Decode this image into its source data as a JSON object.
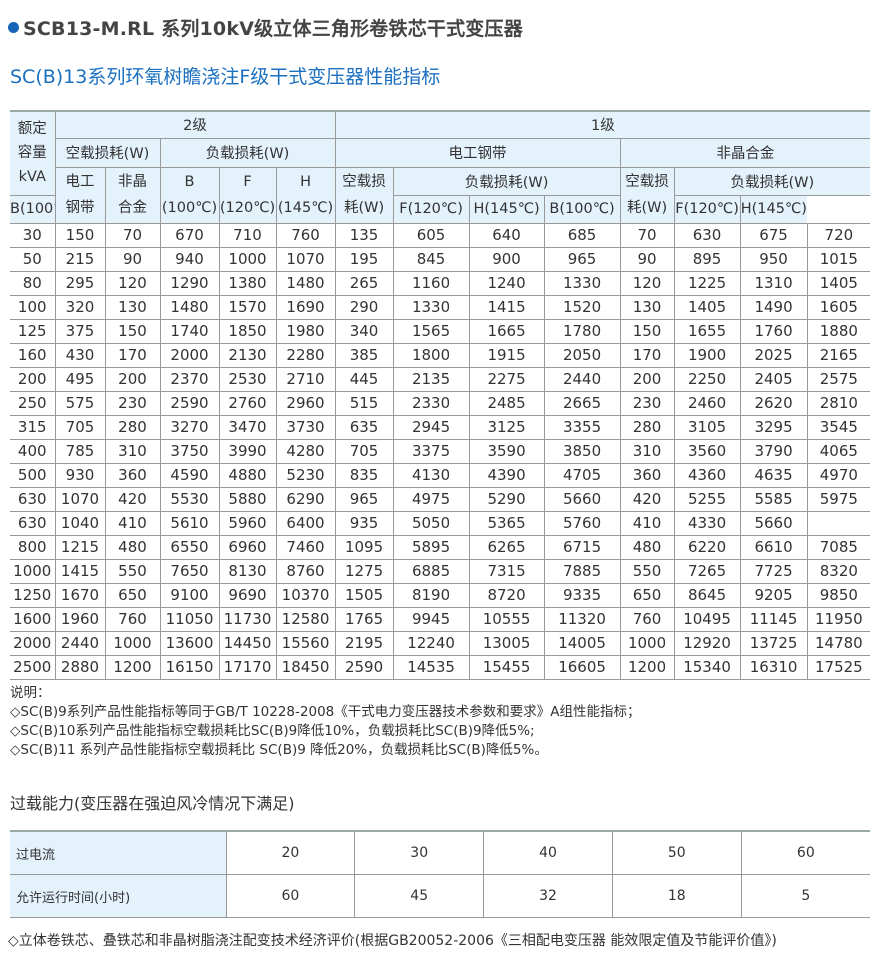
{
  "title": "SCB13-M.RL 系列10kV级立体三角形卷铁芯干式变压器",
  "subtitle": "SC(B)13系列环氧树瞻浇注F级干式变压器性能指标",
  "accent_color": "#1565b8",
  "main_table": {
    "header": {
      "rated_capacity": [
        "额定",
        "容量",
        "kVA"
      ],
      "grade2": "2级",
      "grade1": "1级",
      "no_load_loss": "空载损耗(W)",
      "load_loss": "负载损耗(W)",
      "silicon_steel": "电工钢带",
      "amorphous": "非晶合金",
      "steel_2lines": [
        "电工",
        "钢带"
      ],
      "amorphous_2lines": [
        "非晶",
        "合金"
      ],
      "b_2lines": [
        "B",
        "(100℃)"
      ],
      "f_2lines": [
        "F",
        "(120℃)"
      ],
      "h_2lines": [
        "H",
        "(145℃)"
      ],
      "no_load_2lines": [
        "空载损",
        "耗(W)"
      ],
      "b": "B(100℃)",
      "f": "F(120℃)",
      "h": "H(145℃)"
    },
    "rows": [
      [
        "30",
        "150",
        "70",
        "670",
        "710",
        "760",
        "135",
        "605",
        "640",
        "685",
        "70",
        "630",
        "675",
        "720"
      ],
      [
        "50",
        "215",
        "90",
        "940",
        "1000",
        "1070",
        "195",
        "845",
        "900",
        "965",
        "90",
        "895",
        "950",
        "1015"
      ],
      [
        "80",
        "295",
        "120",
        "1290",
        "1380",
        "1480",
        "265",
        "1160",
        "1240",
        "1330",
        "120",
        "1225",
        "1310",
        "1405"
      ],
      [
        "100",
        "320",
        "130",
        "1480",
        "1570",
        "1690",
        "290",
        "1330",
        "1415",
        "1520",
        "130",
        "1405",
        "1490",
        "1605"
      ],
      [
        "125",
        "375",
        "150",
        "1740",
        "1850",
        "1980",
        "340",
        "1565",
        "1665",
        "1780",
        "150",
        "1655",
        "1760",
        "1880"
      ],
      [
        "160",
        "430",
        "170",
        "2000",
        "2130",
        "2280",
        "385",
        "1800",
        "1915",
        "2050",
        "170",
        "1900",
        "2025",
        "2165"
      ],
      [
        "200",
        "495",
        "200",
        "2370",
        "2530",
        "2710",
        "445",
        "2135",
        "2275",
        "2440",
        "200",
        "2250",
        "2405",
        "2575"
      ],
      [
        "250",
        "575",
        "230",
        "2590",
        "2760",
        "2960",
        "515",
        "2330",
        "2485",
        "2665",
        "230",
        "2460",
        "2620",
        "2810"
      ],
      [
        "315",
        "705",
        "280",
        "3270",
        "3470",
        "3730",
        "635",
        "2945",
        "3125",
        "3355",
        "280",
        "3105",
        "3295",
        "3545"
      ],
      [
        "400",
        "785",
        "310",
        "3750",
        "3990",
        "4280",
        "705",
        "3375",
        "3590",
        "3850",
        "310",
        "3560",
        "3790",
        "4065"
      ],
      [
        "500",
        "930",
        "360",
        "4590",
        "4880",
        "5230",
        "835",
        "4130",
        "4390",
        "4705",
        "360",
        "4360",
        "4635",
        "4970"
      ],
      [
        "630",
        "1070",
        "420",
        "5530",
        "5880",
        "6290",
        "965",
        "4975",
        "5290",
        "5660",
        "420",
        "5255",
        "5585",
        "5975"
      ],
      [
        "630",
        "1040",
        "410",
        "5610",
        "5960",
        "6400",
        "935",
        "5050",
        "5365",
        "5760",
        "410",
        "4330",
        "5660",
        ""
      ],
      [
        "800",
        "1215",
        "480",
        "6550",
        "6960",
        "7460",
        "1095",
        "5895",
        "6265",
        "6715",
        "480",
        "6220",
        "6610",
        "7085"
      ],
      [
        "1000",
        "1415",
        "550",
        "7650",
        "8130",
        "8760",
        "1275",
        "6885",
        "7315",
        "7885",
        "550",
        "7265",
        "7725",
        "8320"
      ],
      [
        "1250",
        "1670",
        "650",
        "9100",
        "9690",
        "10370",
        "1505",
        "8190",
        "8720",
        "9335",
        "650",
        "8645",
        "9205",
        "9850"
      ],
      [
        "1600",
        "1960",
        "760",
        "11050",
        "11730",
        "12580",
        "1765",
        "9945",
        "10555",
        "11320",
        "760",
        "10495",
        "11145",
        "11950"
      ],
      [
        "2000",
        "2440",
        "1000",
        "13600",
        "14450",
        "15560",
        "2195",
        "12240",
        "13005",
        "14005",
        "1000",
        "12920",
        "13725",
        "14780"
      ],
      [
        "2500",
        "2880",
        "1200",
        "16150",
        "17170",
        "18450",
        "2590",
        "14535",
        "15455",
        "16605",
        "1200",
        "15340",
        "16310",
        "17525"
      ]
    ]
  },
  "notes": {
    "heading": "说明：",
    "items": [
      "◇SC(B)9系列产品性能指标等同于GB/T 10228-2008《干式电力变压器技术参数和要求》A组性能指标；",
      "◇SC(B)10系列产品性能指标空载损耗比SC(B)9降低10%，负载损耗比SC(B)9降低5%;",
      "◇SC(B)11 系列产品性能指标空载损耗比 SC(B)9 降低20%，负载损耗比SC(B)降低5%。"
    ]
  },
  "overload": {
    "title": "过载能力(变压器在强迫风冷情况下满足)",
    "rows": [
      {
        "label": "过电流",
        "values": [
          "20",
          "30",
          "40",
          "50",
          "60"
        ]
      },
      {
        "label": "允许运行时间(小时)",
        "values": [
          "60",
          "45",
          "32",
          "18",
          "5"
        ]
      }
    ]
  },
  "footnote": "◇立体卷铁芯、叠铁芯和非晶树脂浇注配变技术经济评价(根据GB20052-2006《三相配电变压器 能效限定值及节能评价值》)"
}
